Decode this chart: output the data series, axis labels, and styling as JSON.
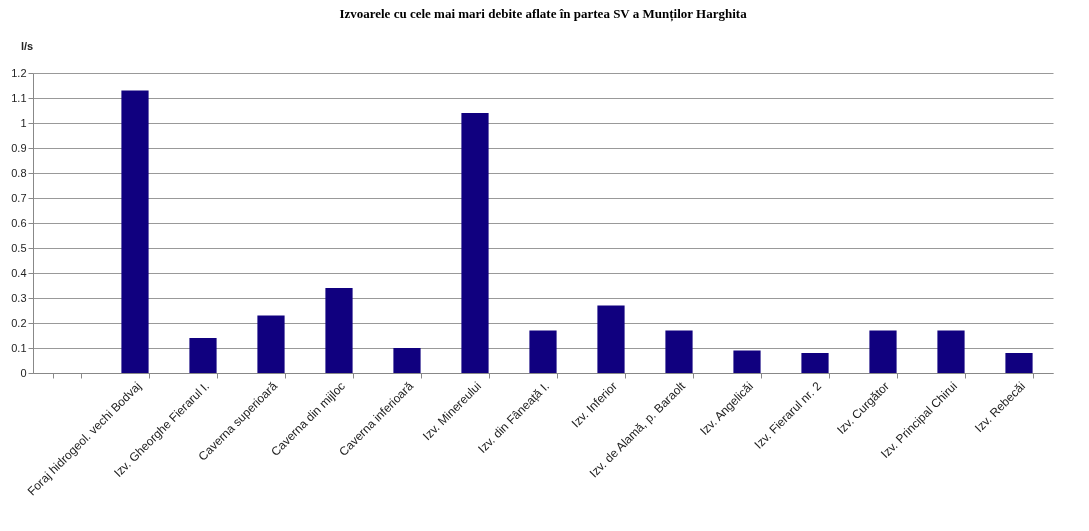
{
  "chart_data": {
    "type": "bar",
    "title": "Izvoarele cu cele mai mari debite aflate în partea SV a Munților Harghita",
    "ylabel": "l/s",
    "categories": [
      null,
      "Foraj hidrogeol. vechi Bodvaj",
      "Izv. Gheorghe Fierarul I.",
      "Caverna superioară",
      "Caverna din mijloc",
      "Caverna inferioară",
      "Izv. Minereului",
      "Izv. din Fâneață I.",
      "Izv. Inferior",
      "Izv. de Alamă, p. Baraolt",
      "Izv. Angelicăi",
      "Izv. Fierarul nr. 2",
      "Izv. Curgător",
      "Izv. Principal Chirui",
      "Izv. Rebecăi"
    ],
    "values": [
      null,
      1.13,
      0.14,
      0.23,
      0.34,
      0.1,
      1.04,
      0.17,
      0.27,
      0.17,
      0.09,
      0.08,
      0.17,
      0.17,
      0.08
    ],
    "color": "#10007f",
    "ylim": [
      0,
      1.2
    ],
    "yticks": [
      0,
      0.1,
      0.2,
      0.3,
      0.4,
      0.5,
      0.6,
      0.7,
      0.8,
      0.9,
      1,
      1.1,
      1.2
    ],
    "grid": "y"
  }
}
